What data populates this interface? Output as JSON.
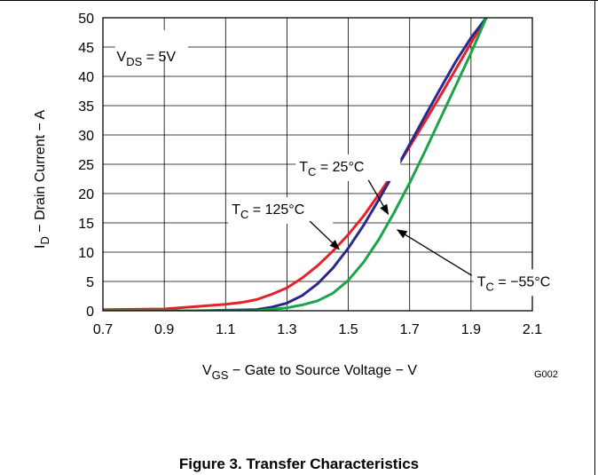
{
  "figure_caption": "Figure 3. Transfer Characteristics",
  "figure_code": "G002",
  "chart_data": {
    "type": "line",
    "xlabel": {
      "main": "V",
      "sub": "GS",
      "rest": " − Gate to Source Voltage − V"
    },
    "ylabel": {
      "main": "I",
      "sub": "D",
      "rest": " − Drain Current − A"
    },
    "xlim": [
      0.7,
      2.1
    ],
    "ylim": [
      0,
      50
    ],
    "xticks": [
      0.7,
      0.9,
      1.1,
      1.3,
      1.5,
      1.7,
      1.9,
      2.1
    ],
    "xtick_labels": [
      "0.7",
      "0.9",
      "1.1",
      "1.3",
      "1.5",
      "1.7",
      "1.9",
      "2.1"
    ],
    "yticks": [
      0,
      5,
      10,
      15,
      20,
      25,
      30,
      35,
      40,
      45,
      50
    ],
    "ytick_labels": [
      "0",
      "5",
      "10",
      "15",
      "20",
      "25",
      "30",
      "35",
      "40",
      "45",
      "50"
    ],
    "grid": true,
    "condition": {
      "main": "V",
      "sub": "DS",
      "rest": " = 5V"
    },
    "series": [
      {
        "label_main": "T",
        "label_sub": "C",
        "label_rest": " = 125°C",
        "color": "#e8202a",
        "x": [
          0.7,
          0.9,
          1.0,
          1.1,
          1.15,
          1.2,
          1.25,
          1.3,
          1.35,
          1.4,
          1.45,
          1.5,
          1.55,
          1.6,
          1.65,
          1.7,
          1.75,
          1.8,
          1.85,
          1.9,
          1.95
        ],
        "y": [
          0.2,
          0.3,
          0.7,
          1.1,
          1.4,
          1.9,
          2.8,
          3.9,
          5.6,
          7.7,
          10.2,
          13.0,
          16.2,
          19.9,
          23.8,
          28.0,
          32.3,
          36.7,
          41.2,
          45.7,
          50.0
        ]
      },
      {
        "label_main": "T",
        "label_sub": "C",
        "label_rest": " = 25°C",
        "color": "#2a2a8c",
        "x": [
          0.7,
          1.0,
          1.2,
          1.25,
          1.3,
          1.35,
          1.4,
          1.45,
          1.5,
          1.55,
          1.6,
          1.65,
          1.7,
          1.75,
          1.8,
          1.85,
          1.9,
          1.95
        ],
        "y": [
          0,
          0,
          0.2,
          0.6,
          1.3,
          2.6,
          4.6,
          7.3,
          10.7,
          14.6,
          19.0,
          23.6,
          28.4,
          33.2,
          37.9,
          42.5,
          46.6,
          50.0
        ]
      },
      {
        "label_main": "T",
        "label_sub": "C",
        "label_rest": " = −55°C",
        "color": "#1aa34a",
        "x": [
          0.7,
          1.0,
          1.2,
          1.3,
          1.35,
          1.4,
          1.45,
          1.5,
          1.55,
          1.6,
          1.65,
          1.7,
          1.75,
          1.8,
          1.85,
          1.9,
          1.95
        ],
        "y": [
          0,
          0,
          0,
          0.5,
          1.0,
          1.7,
          3.0,
          5.2,
          8.3,
          12.2,
          16.8,
          21.8,
          27.2,
          32.8,
          38.4,
          44.0,
          50.0
        ]
      }
    ],
    "annotations": [
      {
        "series": 0,
        "text_x": 1.12,
        "text_y": 16.5,
        "arrow_x": 1.47,
        "arrow_y": 10.5
      },
      {
        "series": 1,
        "text_x": 1.34,
        "text_y": 23.8,
        "arrow_x": 1.63,
        "arrow_y": 16.5
      },
      {
        "series": 2,
        "text_x": 1.92,
        "text_y": 4.2,
        "arrow_x": 1.66,
        "arrow_y": 13.8
      }
    ]
  }
}
